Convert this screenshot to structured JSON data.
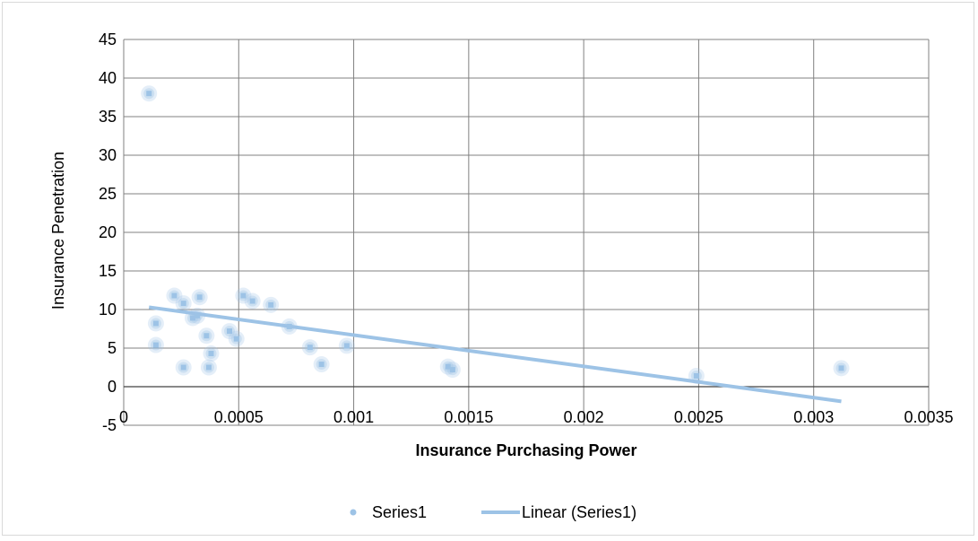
{
  "chart_data": {
    "type": "scatter",
    "title": "",
    "xlabel": "Insurance Purchasing Power",
    "ylabel": "Insurance Penetration",
    "xlim": [
      0,
      0.0035
    ],
    "ylim": [
      -5,
      45
    ],
    "x_ticks": [
      "0",
      "0.0005",
      "0.001",
      "0.0015",
      "0.002",
      "0.0025",
      "0.003",
      "0.0035"
    ],
    "y_ticks": [
      "-5",
      "0",
      "5",
      "10",
      "15",
      "20",
      "25",
      "30",
      "35",
      "40",
      "45"
    ],
    "grid": true,
    "legend_position": "bottom",
    "series": [
      {
        "name": "Series1",
        "kind": "scatter",
        "color": "#9dc3e6",
        "points": [
          {
            "x": 0.00011,
            "y": 38.0
          },
          {
            "x": 0.00014,
            "y": 8.2
          },
          {
            "x": 0.00014,
            "y": 5.4
          },
          {
            "x": 0.00022,
            "y": 11.8
          },
          {
            "x": 0.00026,
            "y": 10.8
          },
          {
            "x": 0.00026,
            "y": 2.5
          },
          {
            "x": 0.0003,
            "y": 8.9
          },
          {
            "x": 0.00032,
            "y": 9.2
          },
          {
            "x": 0.00033,
            "y": 11.6
          },
          {
            "x": 0.00036,
            "y": 6.6
          },
          {
            "x": 0.00037,
            "y": 2.5
          },
          {
            "x": 0.00038,
            "y": 4.3
          },
          {
            "x": 0.00046,
            "y": 7.2
          },
          {
            "x": 0.00049,
            "y": 6.2
          },
          {
            "x": 0.00052,
            "y": 11.8
          },
          {
            "x": 0.00056,
            "y": 11.1
          },
          {
            "x": 0.00064,
            "y": 10.6
          },
          {
            "x": 0.00072,
            "y": 7.8
          },
          {
            "x": 0.00081,
            "y": 5.1
          },
          {
            "x": 0.00086,
            "y": 2.9
          },
          {
            "x": 0.00097,
            "y": 5.3
          },
          {
            "x": 0.00141,
            "y": 2.6
          },
          {
            "x": 0.00143,
            "y": 2.2
          },
          {
            "x": 0.00249,
            "y": 1.4
          },
          {
            "x": 0.00312,
            "y": 2.4
          }
        ]
      },
      {
        "name": "Linear (Series1)",
        "kind": "trendline",
        "color": "#9dc3e6",
        "points": [
          {
            "x": 0.00011,
            "y": 10.3
          },
          {
            "x": 0.00312,
            "y": -1.9
          }
        ]
      }
    ]
  }
}
